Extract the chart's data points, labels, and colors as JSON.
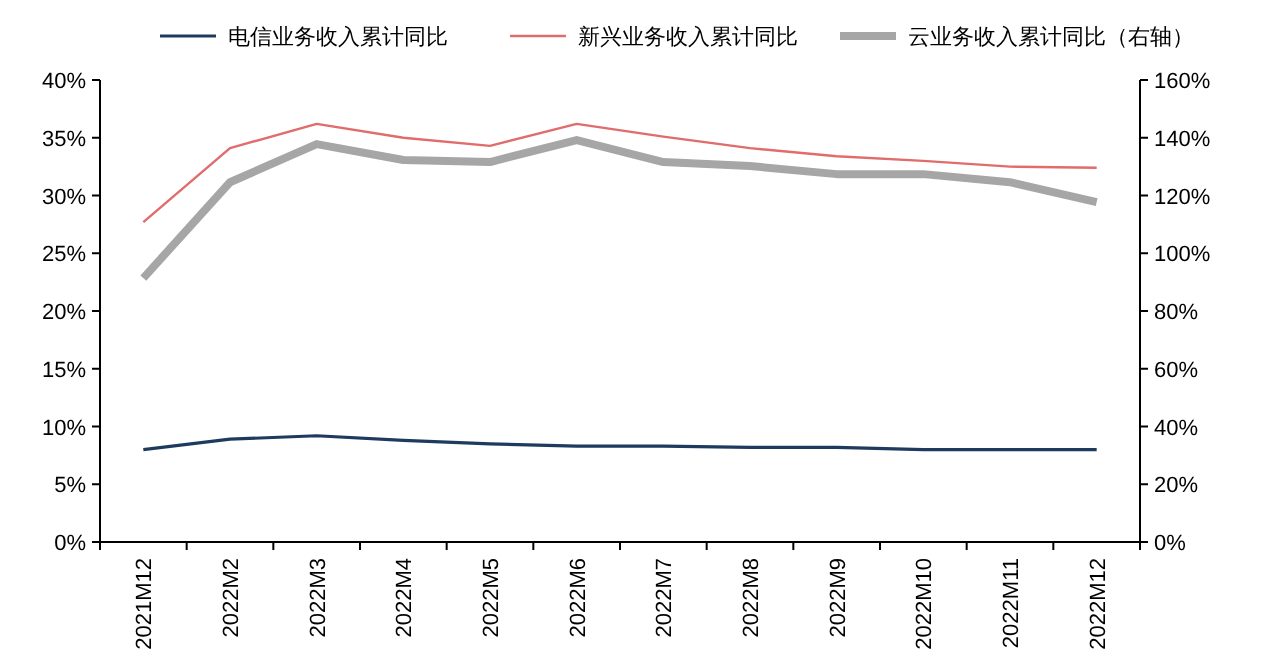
{
  "chart_data": {
    "type": "line",
    "categories": [
      "2021M12",
      "2022M2",
      "2022M3",
      "2022M4",
      "2022M5",
      "2022M6",
      "2022M7",
      "2022M8",
      "2022M9",
      "2022M10",
      "2022M11",
      "2022M12"
    ],
    "series": [
      {
        "name": "电信业务收入累计同比",
        "color": "#1f3a5f",
        "values": [
          8.0,
          8.9,
          9.2,
          8.8,
          8.5,
          8.3,
          8.3,
          8.2,
          8.2,
          8.0,
          8.0,
          8.0
        ]
      },
      {
        "name": "新兴业务收入累计同比",
        "color": "#e06c6c",
        "values": [
          27.7,
          34.1,
          36.2,
          35.0,
          34.3,
          36.2,
          35.1,
          34.1,
          33.4,
          33.0,
          32.5,
          32.4
        ]
      },
      {
        "name": "云业务收入累计同比（右轴）",
        "color": "#a6a6a6",
        "axis": "y2",
        "values": [
          91.4,
          124.6,
          137.8,
          132.3,
          131.6,
          139.2,
          131.6,
          130.2,
          127.4,
          127.4,
          124.6,
          117.7
        ]
      }
    ],
    "ylim": [
      0,
      40
    ],
    "yticks": [
      {
        "value": 0,
        "label": "0%"
      },
      {
        "value": 5,
        "label": "5%"
      },
      {
        "value": 10,
        "label": "10%"
      },
      {
        "value": 15,
        "label": "15%"
      },
      {
        "value": 20,
        "label": "20%"
      },
      {
        "value": 25,
        "label": "25%"
      },
      {
        "value": 30,
        "label": "30%"
      },
      {
        "value": 35,
        "label": "35%"
      },
      {
        "value": 40,
        "label": "40%"
      }
    ],
    "y2lim": [
      0,
      160
    ],
    "y2ticks": [
      {
        "value": 0,
        "label": "0%"
      },
      {
        "value": 20,
        "label": "20%"
      },
      {
        "value": 40,
        "label": "40%"
      },
      {
        "value": 60,
        "label": "60%"
      },
      {
        "value": 80,
        "label": "80%"
      },
      {
        "value": 100,
        "label": "100%"
      },
      {
        "value": 120,
        "label": "120%"
      },
      {
        "value": 140,
        "label": "140%"
      },
      {
        "value": 160,
        "label": "160%"
      }
    ],
    "legend": "top",
    "grid": false
  }
}
